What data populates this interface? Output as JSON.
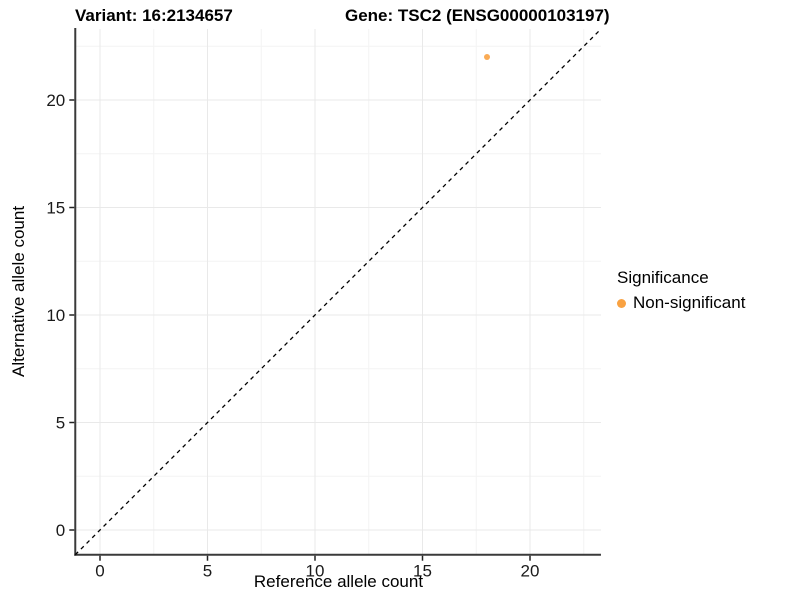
{
  "titles": {
    "variant": "Variant: 16:2134657",
    "gene": "Gene: TSC2 (ENSG00000103197)"
  },
  "legend": {
    "title": "Significance",
    "items": [
      {
        "label": "Non-significant",
        "color": "#F9A242"
      }
    ]
  },
  "colors": {
    "background": "#FFFFFF",
    "grid_major": "#E9E9E9",
    "grid_minor": "#F4F4F4",
    "axis_line": "#3A3A3A",
    "tick_mark": "#222222",
    "tick_text": "#1A1A1A",
    "reference_line": "#000000",
    "point": "#F9A242"
  },
  "chart_data": {
    "type": "scatter",
    "title": "",
    "xlabel": "Reference allele count",
    "ylabel": "Alternative allele count",
    "xlim": [
      -1.15,
      23.3
    ],
    "ylim": [
      -1.15,
      23.3
    ],
    "x_ticks": [
      0,
      5,
      10,
      15,
      20
    ],
    "y_ticks": [
      0,
      5,
      10,
      15,
      20
    ],
    "x_minor_ticks": [
      2.5,
      7.5,
      12.5,
      17.5,
      22.5
    ],
    "y_minor_ticks": [
      2.5,
      7.5,
      12.5,
      17.5,
      22.5
    ],
    "grid": true,
    "legend_position": "right",
    "series": [
      {
        "name": "Non-significant",
        "color": "#F9A242",
        "points": [
          [
            18,
            22
          ]
        ]
      }
    ],
    "reference_line": {
      "kind": "identity",
      "equation": "y = x",
      "style": "dashed"
    }
  }
}
